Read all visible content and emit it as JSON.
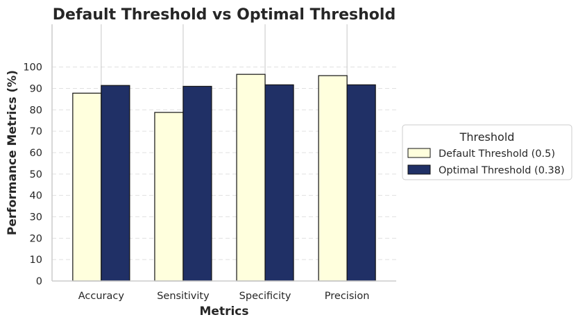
{
  "chart_data": {
    "type": "bar",
    "title": "Default Threshold vs Optimal Threshold",
    "xlabel": "Metrics",
    "ylabel": "Performance Metrics (%)",
    "categories": [
      "Accuracy",
      "Sensitivity",
      "Specificity",
      "Precision"
    ],
    "series": [
      {
        "name": "Default Threshold (0.5)",
        "values": [
          87.8,
          78.8,
          96.6,
          96.0
        ],
        "color": "#ffffdd"
      },
      {
        "name": "Optimal Threshold (0.38)",
        "values": [
          91.4,
          91.0,
          91.7,
          91.7
        ],
        "color": "#203066"
      }
    ],
    "yticks": [
      0,
      10,
      20,
      30,
      40,
      50,
      60,
      70,
      80,
      90,
      100
    ],
    "ylim": [
      0,
      120
    ],
    "grid": true,
    "legend": {
      "title": "Threshold",
      "placement": "outside-right"
    }
  }
}
